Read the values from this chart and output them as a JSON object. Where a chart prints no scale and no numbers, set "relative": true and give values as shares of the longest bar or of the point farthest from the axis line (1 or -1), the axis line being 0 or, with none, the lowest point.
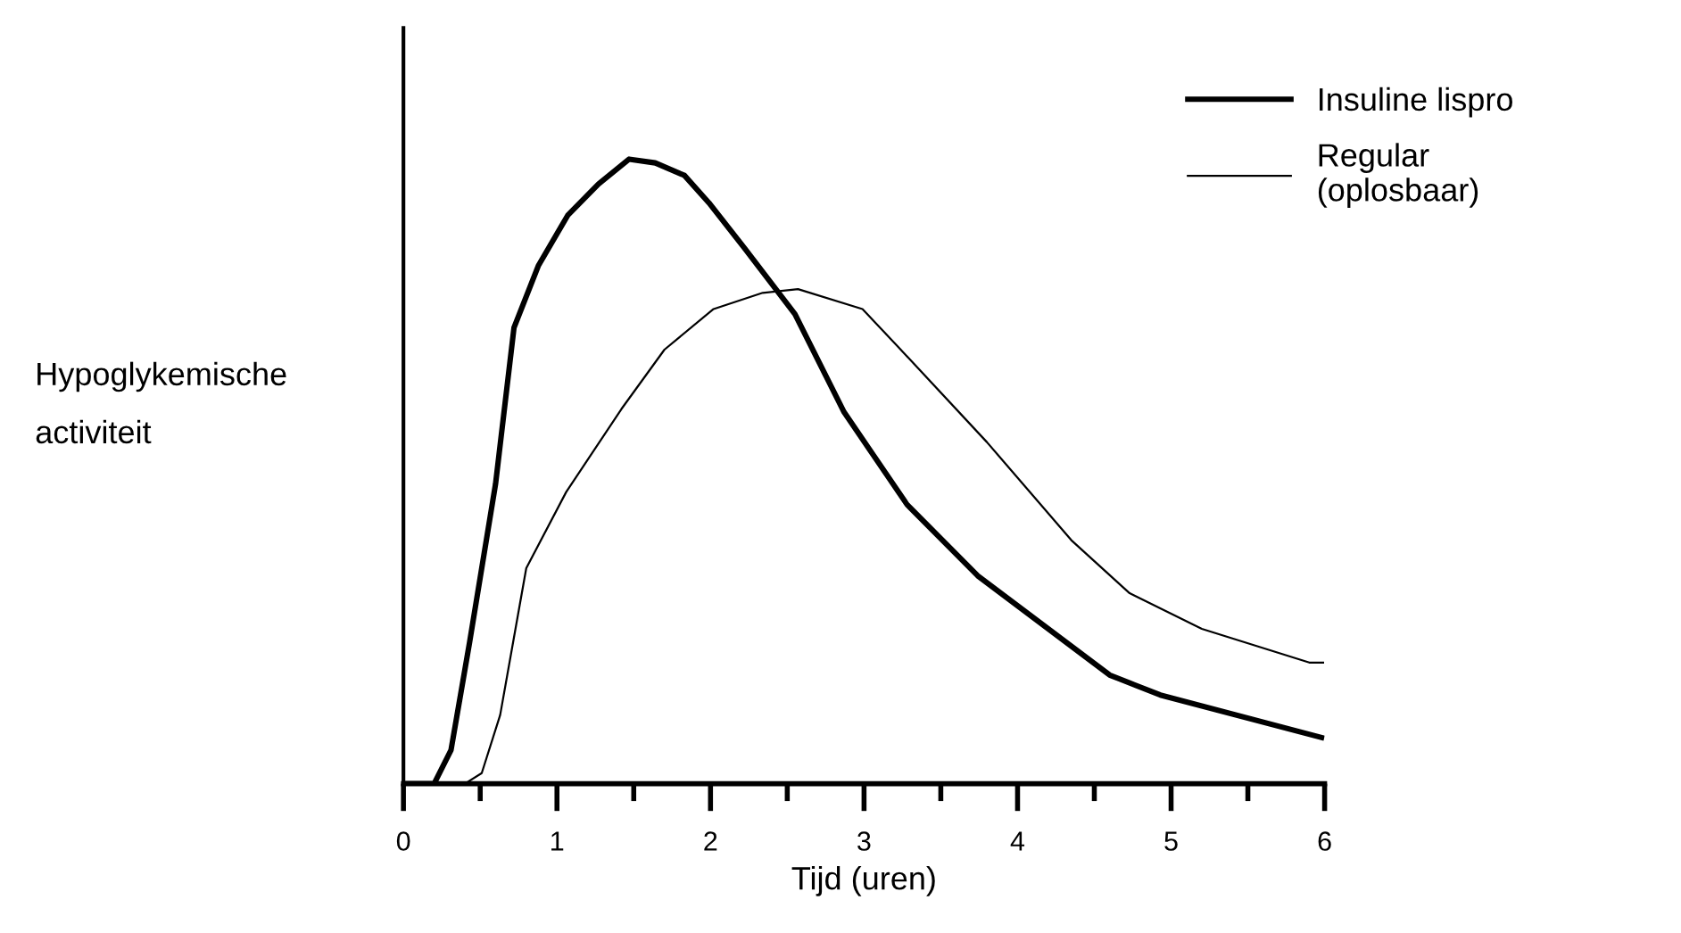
{
  "chart_data": {
    "type": "line",
    "relative": true,
    "xlabel": "Tijd (uren)",
    "ylabel": "Hypoglykemische\nactiviteit",
    "xlim": [
      0,
      6
    ],
    "xticks": [
      0,
      {
        "value": 0.5,
        "label": null
      },
      1,
      {
        "value": 1.5,
        "label": null
      },
      2,
      {
        "value": 2.5,
        "label": null
      },
      3,
      {
        "value": 3.5,
        "label": null
      },
      4,
      {
        "value": 4.5,
        "label": null
      },
      5,
      {
        "value": 5.5,
        "label": null
      },
      6
    ],
    "legend": "top right",
    "grid": false,
    "marker": "none",
    "line_style": "solid",
    "series": [
      {
        "name": "Insuline lispro",
        "color": "#000000",
        "x": [
          0.01,
          0.2,
          0.31,
          0.43,
          0.6,
          0.72,
          0.88,
          1.07,
          1.27,
          1.47,
          1.64,
          1.83,
          1.99,
          2.22,
          2.55,
          2.87,
          3.28,
          3.74,
          4.6,
          4.93,
          5.98
        ],
        "values": [
          0,
          0,
          0.054,
          0.225,
          0.48,
          0.73,
          0.83,
          0.91,
          0.96,
          1.0,
          0.994,
          0.974,
          0.93,
          0.858,
          0.752,
          0.595,
          0.447,
          0.333,
          0.174,
          0.142,
          0.074
        ]
      },
      {
        "name": "Regular\n(oplosbaar)",
        "color": "#000000",
        "x": [
          0.4,
          0.51,
          0.63,
          0.8,
          1.06,
          1.42,
          1.7,
          2.02,
          2.34,
          2.57,
          2.99,
          3.22,
          3.8,
          4.35,
          4.73,
          5.2,
          5.9,
          5.99
        ],
        "values": [
          0,
          0.017,
          0.11,
          0.345,
          0.467,
          0.6,
          0.695,
          0.76,
          0.786,
          0.792,
          0.76,
          0.7,
          0.547,
          0.39,
          0.305,
          0.248,
          0.194,
          0.194
        ]
      }
    ]
  }
}
